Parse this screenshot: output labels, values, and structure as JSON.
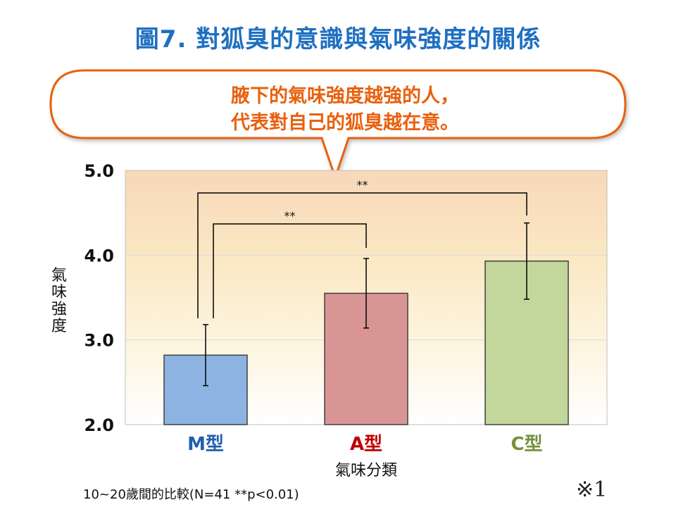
{
  "title": "圖7. 對狐臭的意識與氣味強度的關係",
  "callout": {
    "line1": "腋下的氣味強度越強的人，",
    "line2": "代表對自己的狐臭越在意。"
  },
  "footnote": "10~20歲間的比較(N=41 **p<0.01)",
  "note_mark": "※1",
  "colors": {
    "title": "#1f6fc0",
    "callout_text": "#e8610e",
    "callout_border": "#e8610e",
    "bar_m": "#8db3e2",
    "bar_a": "#d99594",
    "bar_c": "#c3d69b",
    "label_m": "#1f5fae",
    "label_a": "#c00000",
    "label_c": "#76923c"
  },
  "chart_data": {
    "type": "bar",
    "title": "",
    "xlabel": "氣味分類",
    "ylabel": "氣味強度",
    "ylim": [
      2.0,
      5.0
    ],
    "yticks": [
      "2.0",
      "3.0",
      "4.0",
      "5.0"
    ],
    "grid": true,
    "categories": [
      "M型",
      "A型",
      "C型"
    ],
    "values": [
      2.82,
      3.55,
      3.93
    ],
    "error": [
      0.36,
      0.41,
      0.45
    ],
    "significance": [
      {
        "from": "M型",
        "to": "A型",
        "label": "**"
      },
      {
        "from": "M型",
        "to": "C型",
        "label": "**"
      }
    ]
  }
}
